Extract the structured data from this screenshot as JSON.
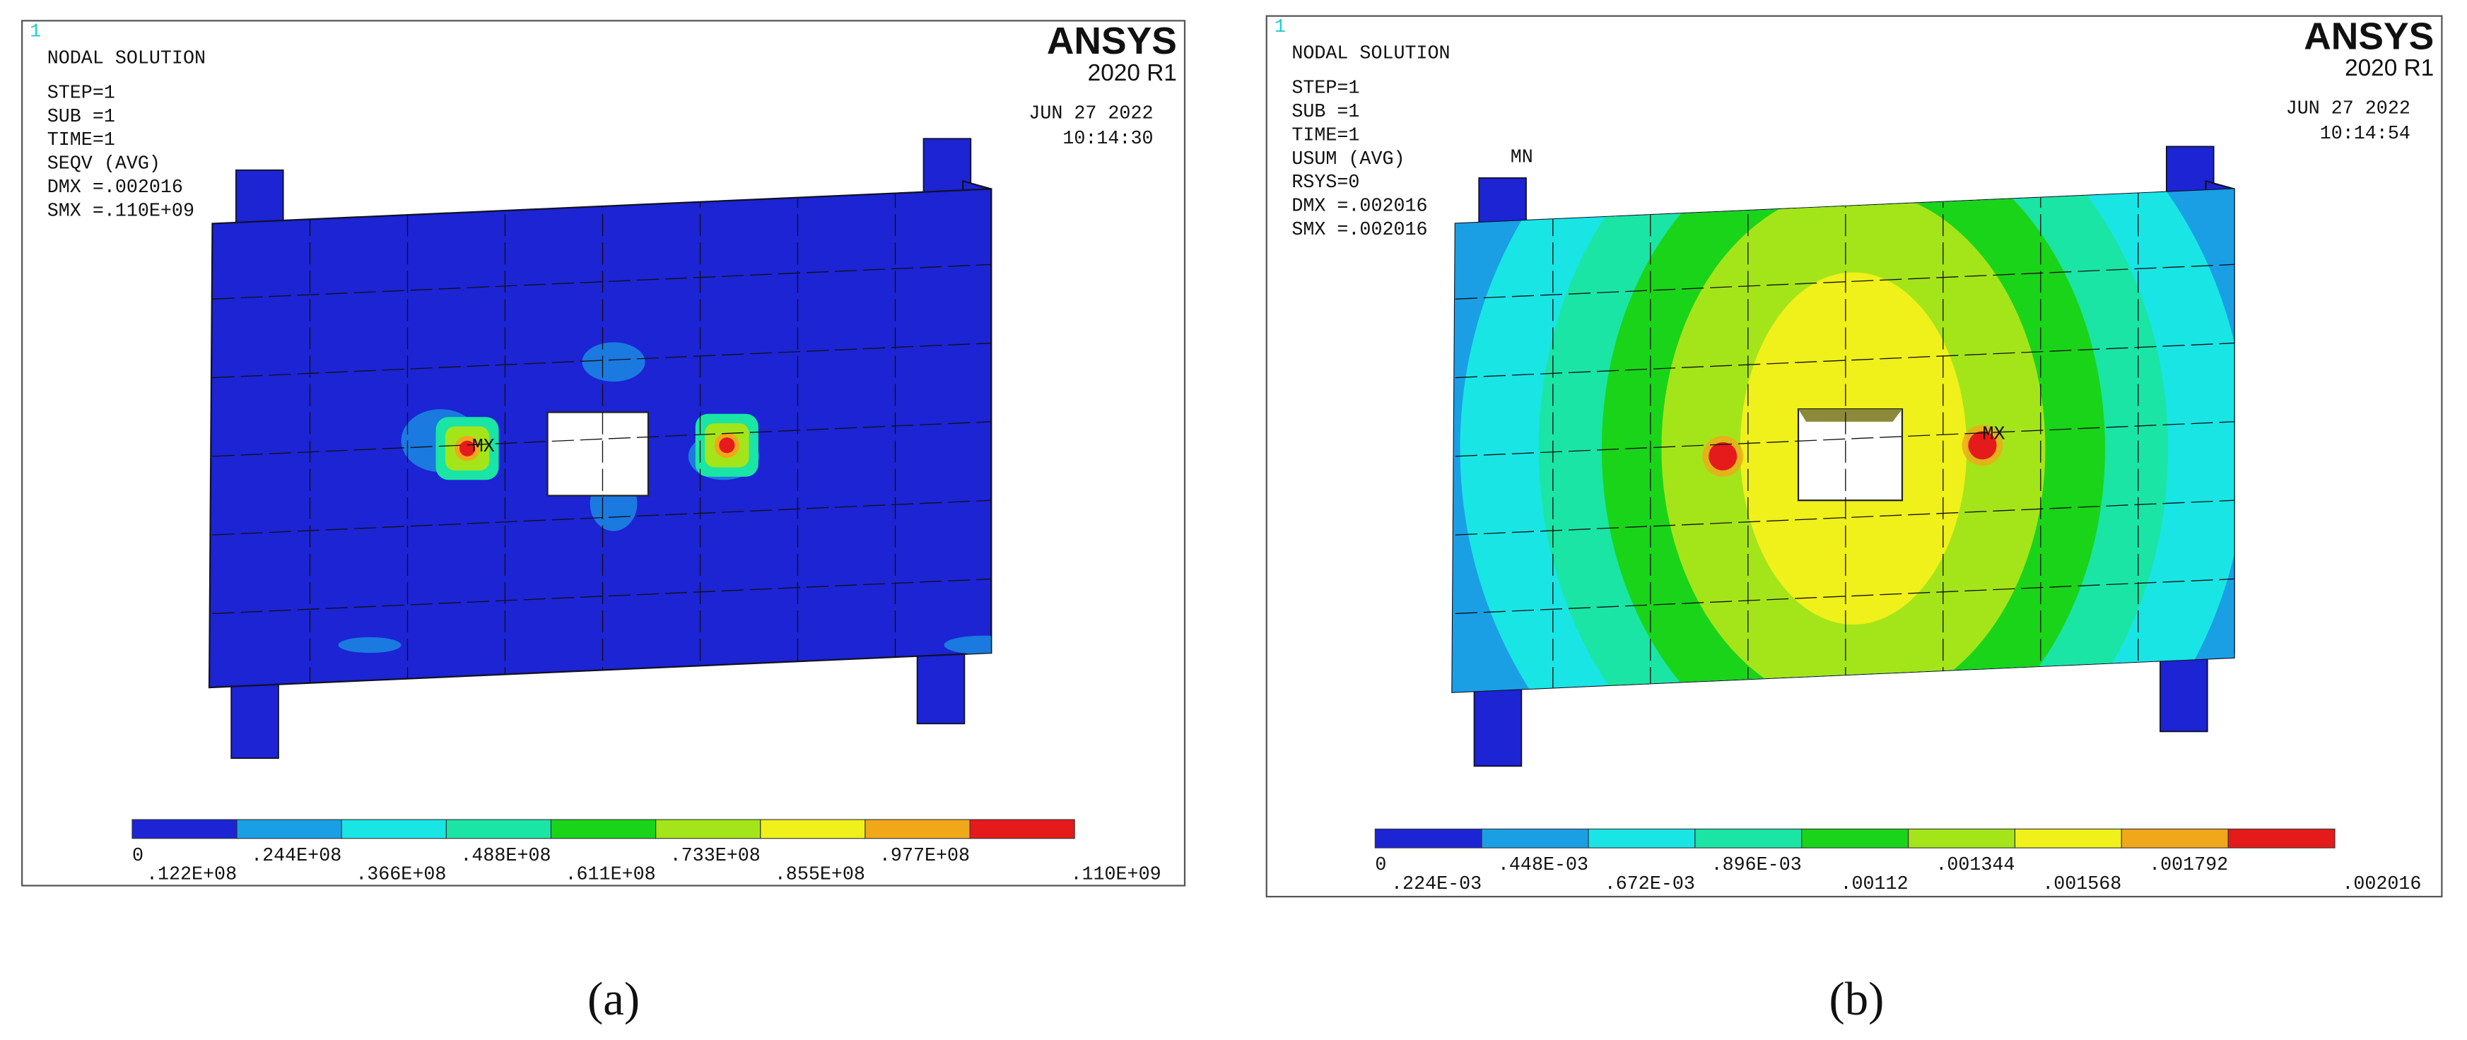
{
  "panels": [
    {
      "header": {
        "number": "1",
        "title": "NODAL SOLUTION",
        "brand": "ANSYS",
        "version": "2020 R1",
        "date": "JUN 27 2022",
        "time": "10:14:30"
      },
      "info": [
        "STEP=1",
        "SUB =1",
        "TIME=1",
        "SEQV     (AVG)",
        "DMX =.002016",
        "SMX =.110E+09"
      ],
      "markers": [
        "MX"
      ],
      "legend": {
        "labels": [
          "0",
          ".122E+08",
          ".244E+08",
          ".366E+08",
          ".488E+08",
          ".611E+08",
          ".733E+08",
          ".855E+08",
          ".977E+08",
          ".110E+09"
        ],
        "colors": [
          "#1c24d4",
          "#1a9fe5",
          "#19e5e5",
          "#1ae5a4",
          "#1ad41a",
          "#a4e51a",
          "#f0f01a",
          "#f0a81a",
          "#e51a1a"
        ]
      },
      "caption": "(a)"
    },
    {
      "header": {
        "number": "1",
        "title": "NODAL SOLUTION",
        "brand": "ANSYS",
        "version": "2020 R1",
        "date": "JUN 27 2022",
        "time": "10:14:54"
      },
      "info": [
        "STEP=1",
        "SUB =1",
        "TIME=1",
        "USUM     (AVG)",
        "RSYS=0",
        "DMX =.002016",
        "SMX =.002016"
      ],
      "markers": [
        "MN",
        "MX"
      ],
      "legend": {
        "labels": [
          "0",
          ".224E-03",
          ".448E-03",
          ".672E-03",
          ".896E-03",
          ".00112",
          ".001344",
          ".001568",
          ".001792",
          ".002016"
        ],
        "colors": [
          "#1c24d4",
          "#1a9fe5",
          "#19e5e5",
          "#1ae5a4",
          "#1ad41a",
          "#a4e51a",
          "#f0f01a",
          "#f0a81a",
          "#e51a1a"
        ]
      },
      "caption": "(b)"
    }
  ]
}
